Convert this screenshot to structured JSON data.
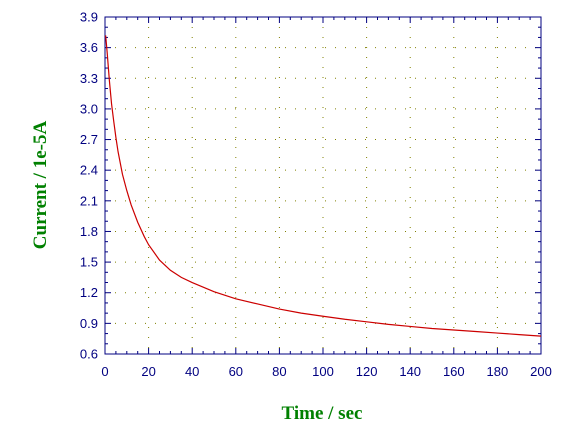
{
  "chart_data": {
    "type": "line",
    "xlabel": "Time / sec",
    "ylabel": "Current / 1e-5A",
    "xlim": [
      0,
      200
    ],
    "ylim": [
      0.6,
      3.9
    ],
    "x_ticks": [
      0,
      20,
      40,
      60,
      80,
      100,
      120,
      140,
      160,
      180,
      200
    ],
    "y_ticks": [
      0.6,
      0.9,
      1.2,
      1.5,
      1.8,
      2.1,
      2.4,
      2.7,
      3.0,
      3.3,
      3.6,
      3.9
    ],
    "x_tick_labels": [
      "0",
      "20",
      "40",
      "60",
      "80",
      "100",
      "120",
      "140",
      "160",
      "180",
      "200"
    ],
    "y_tick_labels": [
      "0.6",
      "0.9",
      "1.2",
      "1.5",
      "1.8",
      "2.1",
      "2.4",
      "2.7",
      "3.0",
      "3.3",
      "3.6",
      "3.9"
    ],
    "grid": "dotted",
    "colors": {
      "axis": "#000080",
      "line": "#cc0000",
      "title": "#008000",
      "grid": "#808000"
    },
    "series": [
      {
        "x": [
          0.3,
          1,
          2,
          3,
          4,
          5,
          6,
          8,
          10,
          12,
          15,
          18,
          20,
          25,
          30,
          35,
          40,
          50,
          60,
          70,
          80,
          90,
          100,
          110,
          120,
          130,
          140,
          150,
          160,
          170,
          180,
          190,
          200
        ],
        "values": [
          3.72,
          3.55,
          3.28,
          3.05,
          2.88,
          2.72,
          2.58,
          2.36,
          2.2,
          2.06,
          1.89,
          1.75,
          1.67,
          1.52,
          1.42,
          1.35,
          1.3,
          1.21,
          1.14,
          1.09,
          1.04,
          1.0,
          0.97,
          0.94,
          0.915,
          0.89,
          0.87,
          0.85,
          0.835,
          0.82,
          0.805,
          0.79,
          0.775
        ]
      }
    ]
  }
}
